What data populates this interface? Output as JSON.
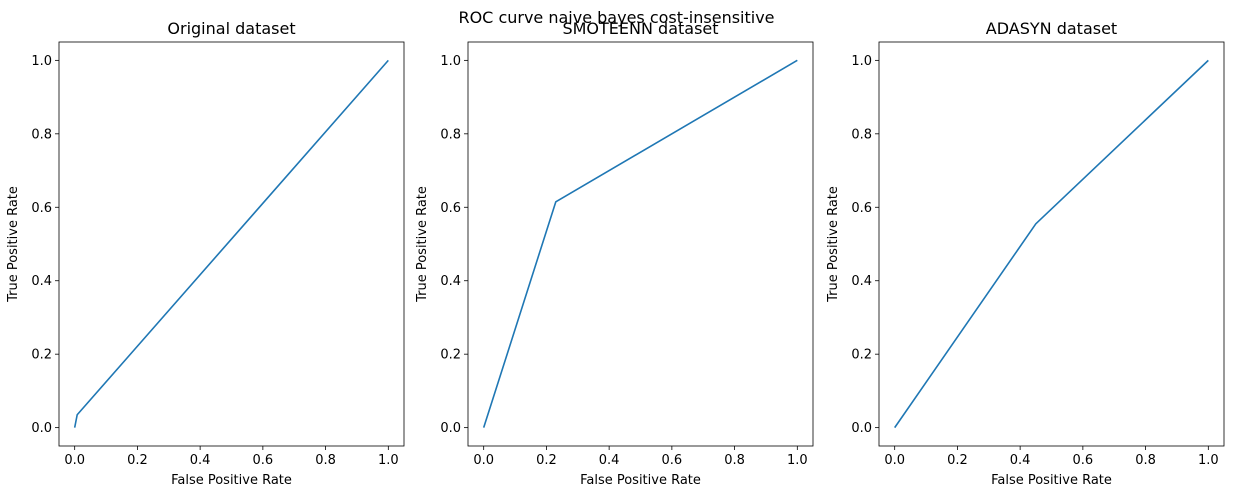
{
  "figure": {
    "suptitle": "ROC curve naive bayes cost-insensitive",
    "line_color": "#1f77b4"
  },
  "chart_data": [
    {
      "type": "line",
      "title": "Original dataset",
      "xlabel": "False Positive Rate",
      "ylabel": "True Positive Rate",
      "xlim": [
        -0.05,
        1.05
      ],
      "ylim": [
        -0.05,
        1.05
      ],
      "xticks": [
        "0.0",
        "0.2",
        "0.4",
        "0.6",
        "0.8",
        "1.0"
      ],
      "yticks": [
        "0.0",
        "0.2",
        "0.4",
        "0.6",
        "0.8",
        "1.0"
      ],
      "grid": false,
      "series": [
        {
          "x": [
            0.0,
            0.008,
            1.0
          ],
          "y": [
            0.0,
            0.035,
            1.0
          ]
        }
      ]
    },
    {
      "type": "line",
      "title": "SMOTEENN dataset",
      "xlabel": "False Positive Rate",
      "ylabel": "True Positive Rate",
      "xlim": [
        -0.05,
        1.05
      ],
      "ylim": [
        -0.05,
        1.05
      ],
      "xticks": [
        "0.0",
        "0.2",
        "0.4",
        "0.6",
        "0.8",
        "1.0"
      ],
      "yticks": [
        "0.0",
        "0.2",
        "0.4",
        "0.6",
        "0.8",
        "1.0"
      ],
      "grid": false,
      "series": [
        {
          "x": [
            0.0,
            0.23,
            1.0
          ],
          "y": [
            0.0,
            0.615,
            1.0
          ]
        }
      ]
    },
    {
      "type": "line",
      "title": "ADASYN dataset",
      "xlabel": "False Positive Rate",
      "ylabel": "True Positive Rate",
      "xlim": [
        -0.05,
        1.05
      ],
      "ylim": [
        -0.05,
        1.05
      ],
      "xticks": [
        "0.0",
        "0.2",
        "0.4",
        "0.6",
        "0.8",
        "1.0"
      ],
      "yticks": [
        "0.0",
        "0.2",
        "0.4",
        "0.6",
        "0.8",
        "1.0"
      ],
      "grid": false,
      "series": [
        {
          "x": [
            0.0,
            0.45,
            1.0
          ],
          "y": [
            0.0,
            0.555,
            1.0
          ]
        }
      ]
    }
  ]
}
